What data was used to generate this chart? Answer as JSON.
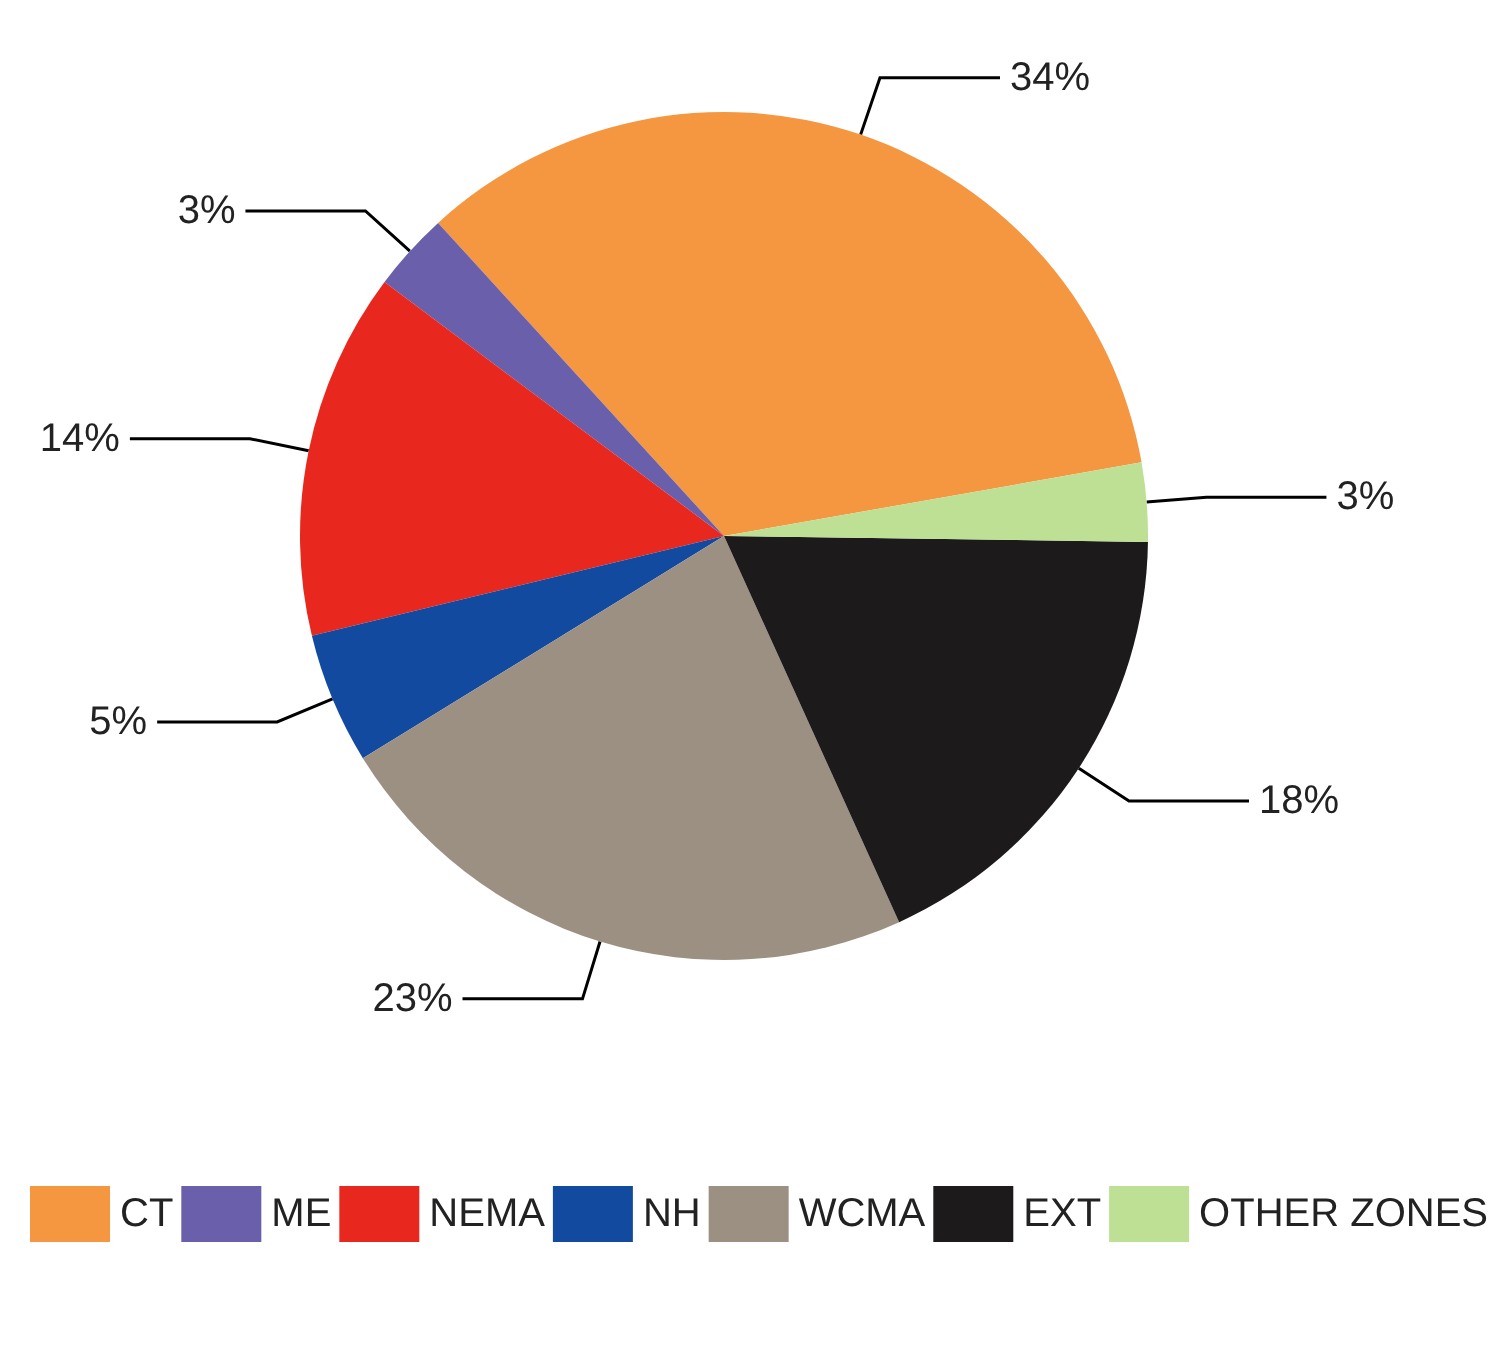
{
  "chart_data": {
    "type": "pie",
    "categories": [
      "CT",
      "ME",
      "NEMA",
      "NH",
      "WCMA",
      "EXT",
      "OTHER ZONES"
    ],
    "values": [
      34,
      3,
      14,
      5,
      23,
      18,
      3
    ],
    "value_labels": [
      "34%",
      "3%",
      "14%",
      "5%",
      "23%",
      "18%",
      "3%"
    ],
    "colors": [
      "#f59640",
      "#6a5fab",
      "#e8281e",
      "#124aa0",
      "#9c9083",
      "#1c1a1b",
      "#bde094"
    ],
    "legend": "bottom"
  }
}
